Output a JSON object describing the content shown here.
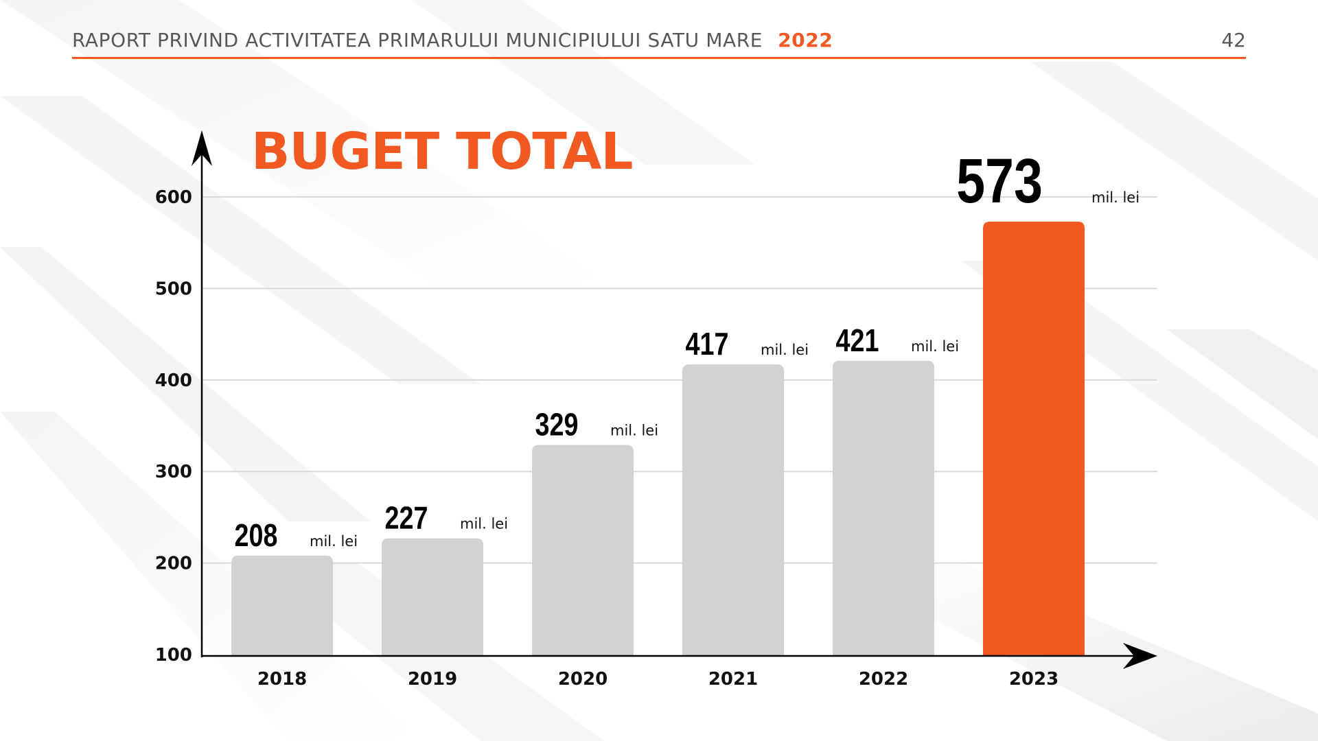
{
  "header": {
    "title": "RAPORT PRIVIND ACTIVITATEA PRIMARULUI MUNICIPIULUI SATU MARE",
    "year": "2022",
    "page_number": "42"
  },
  "colors": {
    "accent": "#f05a22",
    "bar_default": "#d1d2d4",
    "header_text": "#555759",
    "gridline": "#d9d9d9"
  },
  "chart_data": {
    "type": "bar",
    "title": "BUGET TOTAL",
    "xlabel": "",
    "ylabel": "",
    "unit": "mil. lei",
    "categories": [
      "2018",
      "2019",
      "2020",
      "2021",
      "2022",
      "2023"
    ],
    "values": [
      208,
      227,
      329,
      417,
      421,
      573
    ],
    "value_labels": [
      "208",
      "227",
      "329",
      "417",
      "421",
      "573"
    ],
    "highlight_index": 5,
    "yticks": [
      100,
      200,
      300,
      400,
      500,
      600
    ],
    "ylim": [
      100,
      600
    ],
    "grid": true,
    "legend": "none"
  }
}
